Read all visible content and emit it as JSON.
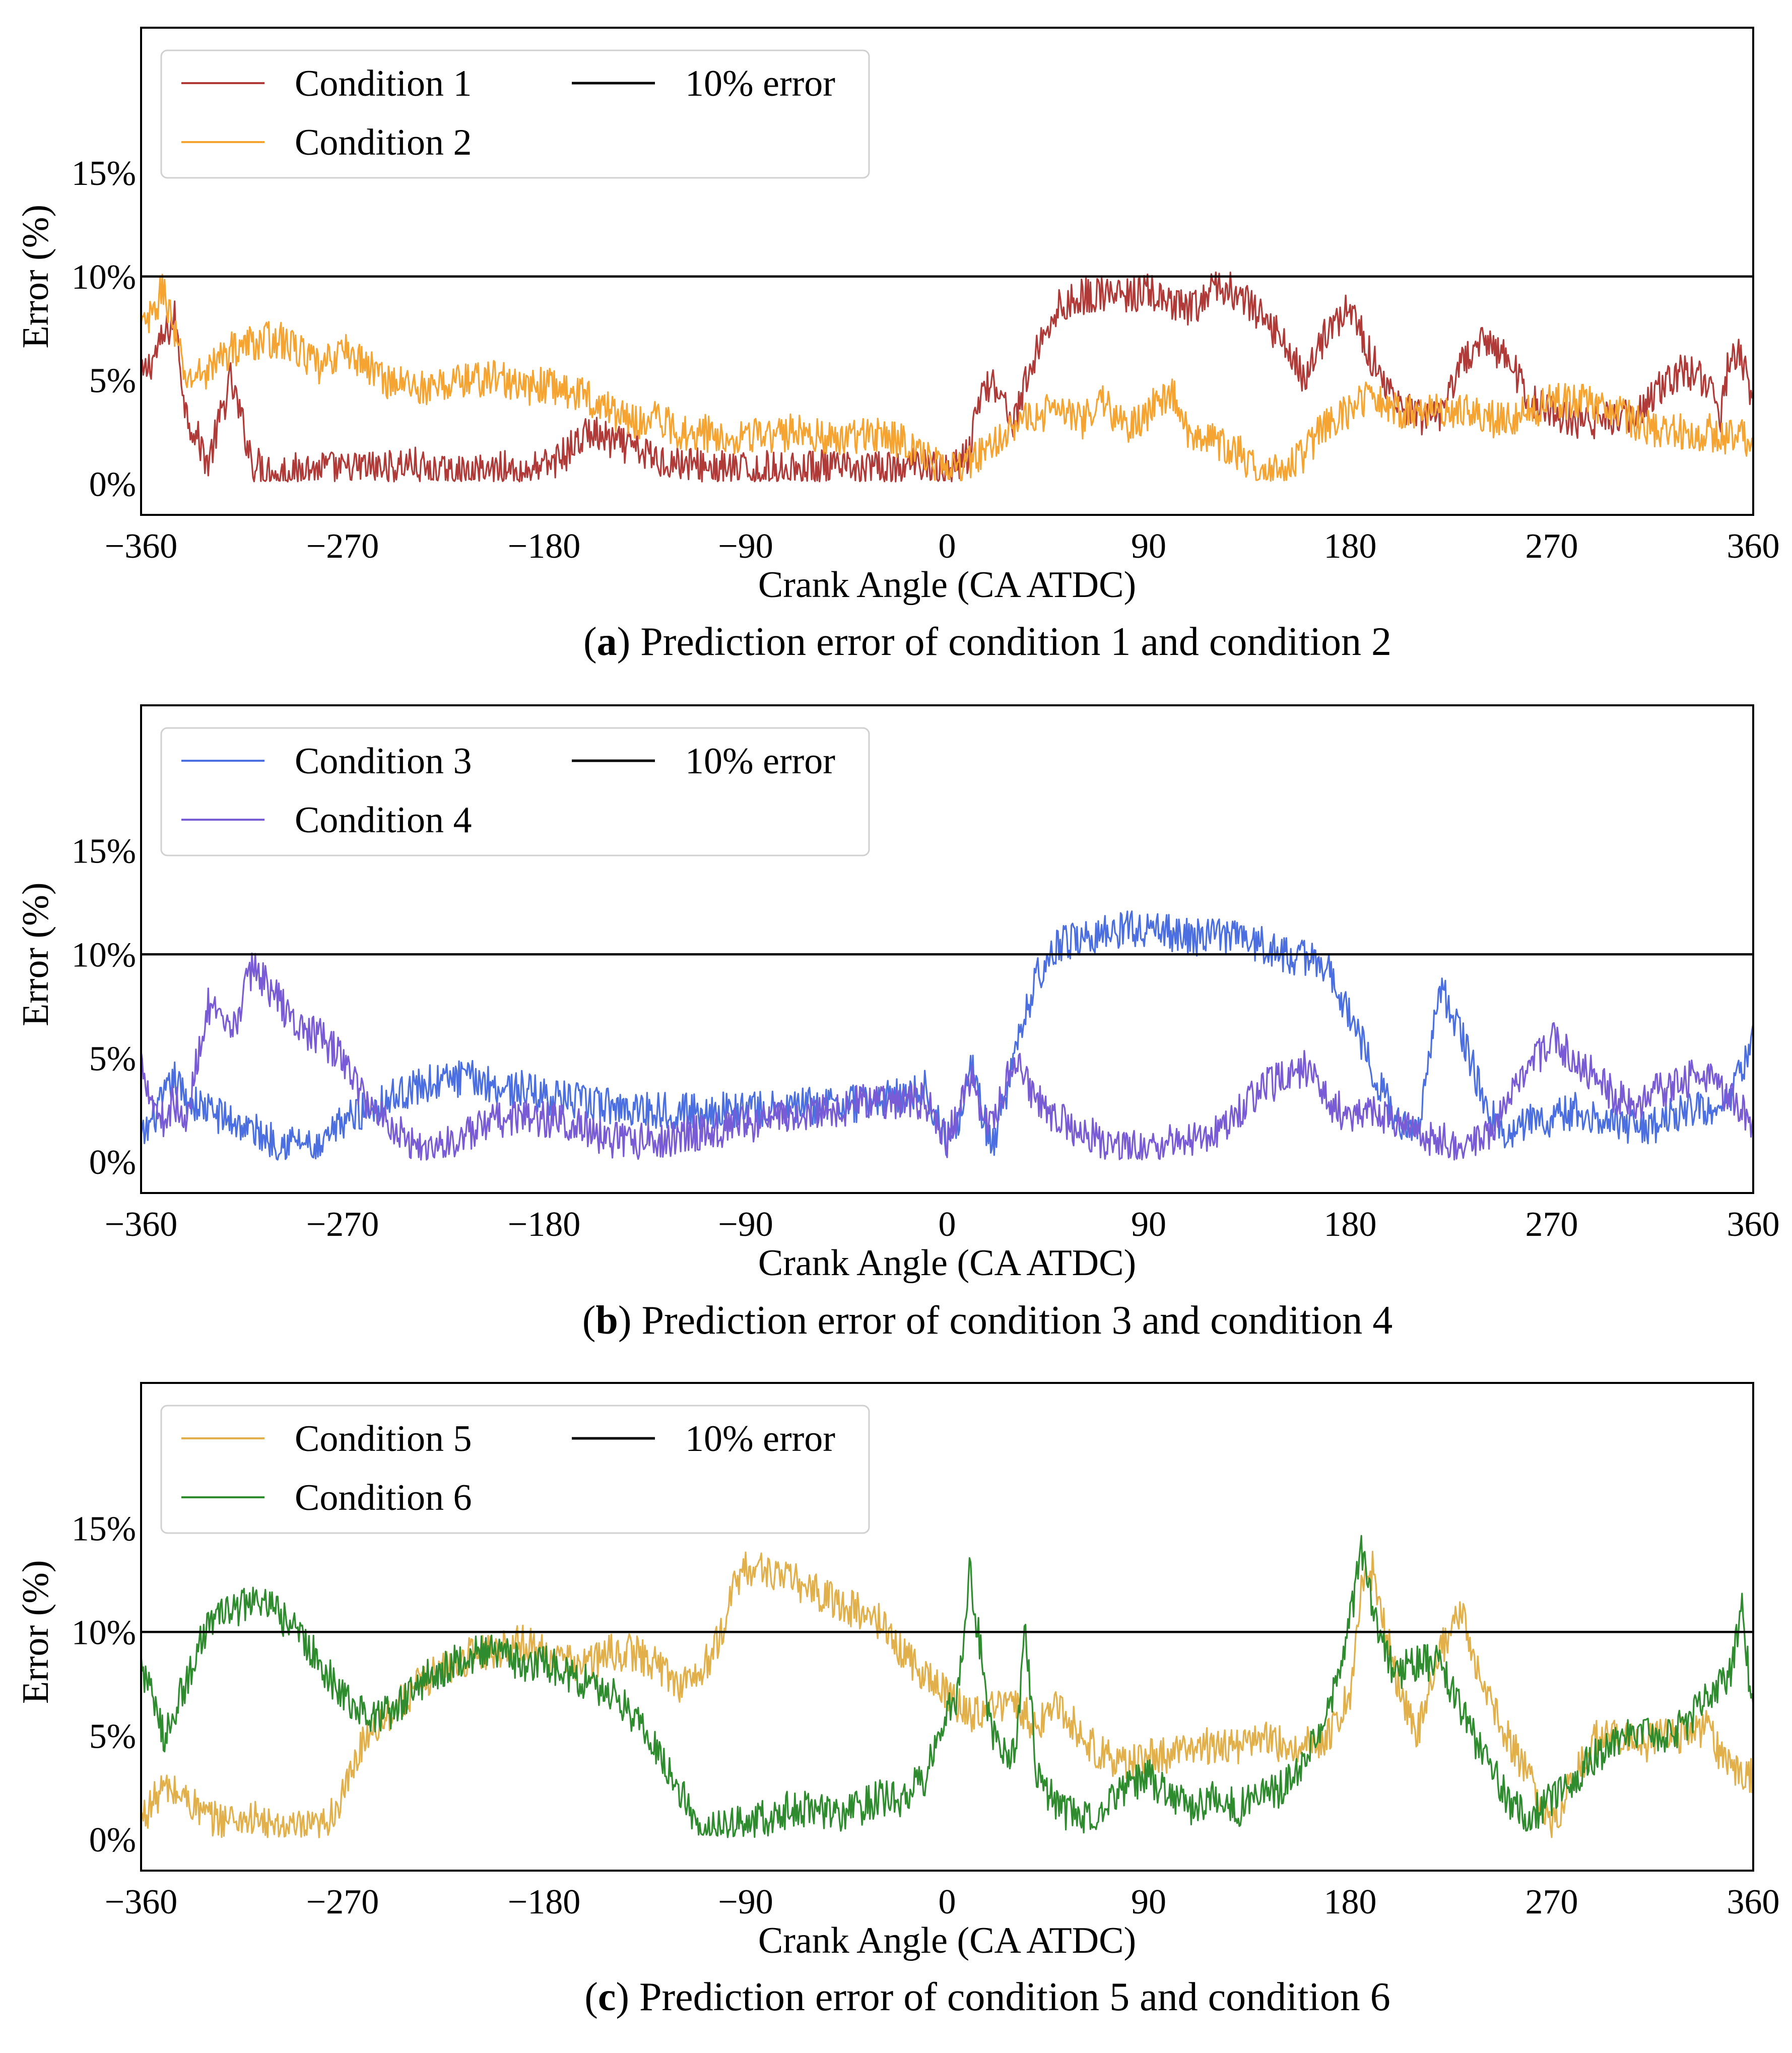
{
  "chart_data": [
    {
      "type": "line",
      "panel": "a",
      "caption_label": "a",
      "caption_text": "Prediction error of condition 1 and condition 2",
      "xlabel": "Crank Angle (CA ATDC)",
      "ylabel": "Error (%)",
      "xlim": [
        -360,
        360
      ],
      "ylim": [
        -1.5,
        22
      ],
      "xticks": [
        -360,
        -270,
        -180,
        -90,
        0,
        90,
        180,
        270,
        360
      ],
      "xtick_labels": [
        "−360",
        "−270",
        "−180",
        "−90",
        "0",
        "90",
        "180",
        "270",
        "360"
      ],
      "yticks": [
        0,
        5,
        10,
        15
      ],
      "ytick_labels": [
        "0%",
        "5%",
        "10%",
        "15%"
      ],
      "grid": false,
      "legend_position": "top-left",
      "reference_line": {
        "name": "10% error",
        "y": 10,
        "color": "#000000"
      },
      "series": [
        {
          "name": "Condition 1",
          "color": "#b03a38",
          "x": [
            -360,
            -350,
            -345,
            -340,
            -330,
            -320,
            -310,
            -300,
            -290,
            -280,
            -270,
            -260,
            -250,
            -240,
            -230,
            -220,
            -210,
            -200,
            -190,
            -180,
            -170,
            -160,
            -150,
            -140,
            -130,
            -120,
            -110,
            -100,
            -90,
            -80,
            -70,
            -60,
            -50,
            -40,
            -30,
            -20,
            -10,
            0,
            10,
            15,
            20,
            30,
            40,
            50,
            60,
            70,
            80,
            90,
            100,
            110,
            120,
            130,
            140,
            150,
            160,
            170,
            180,
            190,
            200,
            210,
            220,
            230,
            240,
            250,
            260,
            270,
            280,
            290,
            300,
            310,
            320,
            330,
            340,
            345,
            350,
            355,
            360
          ],
          "values": [
            5,
            7,
            8,
            3.5,
            1,
            5,
            1,
            0.5,
            0.7,
            0.8,
            0.6,
            0.8,
            0.7,
            1,
            0.5,
            0.4,
            0.5,
            0.8,
            0.6,
            0.8,
            1.5,
            2.5,
            2,
            1.7,
            1.2,
            1,
            0.9,
            0.7,
            0.6,
            0.7,
            0.6,
            0.8,
            0.7,
            0.6,
            0.7,
            0.6,
            1.2,
            0.5,
            1.5,
            4.5,
            5,
            3,
            6.5,
            8.5,
            9,
            9.2,
            9,
            9.3,
            8.5,
            8.4,
            9.5,
            9.2,
            8,
            7,
            5,
            7.5,
            8.5,
            6,
            4,
            3.2,
            3,
            6,
            6.8,
            6.2,
            4,
            3.5,
            3,
            3,
            3.2,
            3.5,
            4.8,
            5.5,
            5,
            3,
            6.5,
            6,
            4
          ]
        },
        {
          "name": "Condition 2",
          "color": "#f5a431",
          "x": [
            -360,
            -355,
            -350,
            -340,
            -330,
            -320,
            -310,
            -300,
            -290,
            -280,
            -270,
            -260,
            -250,
            -240,
            -230,
            -220,
            -210,
            -200,
            -190,
            -180,
            -170,
            -160,
            -150,
            -140,
            -130,
            -120,
            -110,
            -100,
            -90,
            -80,
            -70,
            -60,
            -50,
            -40,
            -30,
            -20,
            -10,
            0,
            10,
            20,
            30,
            40,
            50,
            60,
            70,
            80,
            90,
            100,
            110,
            120,
            130,
            140,
            150,
            160,
            170,
            180,
            190,
            200,
            210,
            220,
            230,
            240,
            250,
            260,
            270,
            280,
            290,
            300,
            310,
            320,
            330,
            340,
            350,
            360
          ],
          "values": [
            7.5,
            8,
            9.5,
            5,
            5.5,
            6.5,
            6.8,
            7,
            6.5,
            5.5,
            6.5,
            5.8,
            5,
            4.8,
            4.5,
            5,
            5,
            5.2,
            4.5,
            4.8,
            4.5,
            4.2,
            3.5,
            3,
            3.2,
            2.5,
            2.5,
            2.2,
            2.5,
            2.2,
            2.5,
            2.5,
            2,
            2.3,
            2.5,
            2,
            1.5,
            0.5,
            1,
            2,
            3,
            3,
            4,
            3,
            4,
            2.5,
            3.5,
            4.5,
            2,
            2,
            1.5,
            0.5,
            0.5,
            1.5,
            3,
            3.5,
            4.5,
            3.5,
            3.5,
            3.5,
            3.5,
            3.2,
            3,
            3.5,
            4,
            4,
            3.8,
            3.5,
            2.8,
            2.6,
            2.5,
            2.5,
            2.2,
            2.2
          ]
        }
      ]
    },
    {
      "type": "line",
      "panel": "b",
      "caption_label": "b",
      "caption_text": "Prediction error of condition 3 and condition 4",
      "xlabel": "Crank Angle (CA ATDC)",
      "ylabel": "Error (%)",
      "xlim": [
        -360,
        360
      ],
      "ylim": [
        -1.5,
        22
      ],
      "xticks": [
        -360,
        -270,
        -180,
        -90,
        0,
        90,
        180,
        270,
        360
      ],
      "xtick_labels": [
        "−360",
        "−270",
        "−180",
        "−90",
        "0",
        "90",
        "180",
        "270",
        "360"
      ],
      "yticks": [
        0,
        5,
        10,
        15
      ],
      "ytick_labels": [
        "0%",
        "5%",
        "10%",
        "15%"
      ],
      "grid": false,
      "legend_position": "top-left",
      "reference_line": {
        "name": "10% error",
        "y": 10,
        "color": "#000000"
      },
      "series": [
        {
          "name": "Condition 3",
          "color": "#4b6fe0",
          "x": [
            -360,
            -355,
            -350,
            -345,
            -340,
            -330,
            -320,
            -310,
            -300,
            -290,
            -280,
            -270,
            -260,
            -250,
            -240,
            -230,
            -220,
            -210,
            -200,
            -190,
            -180,
            -170,
            -160,
            -150,
            -140,
            -130,
            -120,
            -110,
            -100,
            -90,
            -80,
            -70,
            -60,
            -50,
            -40,
            -30,
            -20,
            -10,
            0,
            5,
            10,
            20,
            30,
            40,
            50,
            60,
            70,
            80,
            90,
            100,
            110,
            120,
            130,
            140,
            150,
            160,
            170,
            180,
            190,
            200,
            210,
            220,
            230,
            240,
            250,
            260,
            270,
            280,
            290,
            300,
            310,
            320,
            330,
            340,
            350,
            360
          ],
          "values": [
            1,
            2,
            3,
            4,
            3,
            2.5,
            2,
            1.5,
            1,
            1,
            0.5,
            2,
            2.5,
            3,
            3.5,
            3.8,
            4,
            4,
            3.6,
            3.5,
            3.2,
            3,
            2.8,
            2.7,
            2.6,
            2.5,
            2.5,
            2.4,
            2.5,
            2.5,
            2.5,
            2.6,
            2.7,
            2.8,
            2.8,
            3,
            3.2,
            3.5,
            1,
            2,
            5,
            0.5,
            5,
            9,
            10.5,
            10.8,
            11,
            11.3,
            11.2,
            11,
            10.8,
            11,
            10.8,
            10.5,
            10,
            9.8,
            9.5,
            7,
            4.5,
            2,
            1.5,
            8.5,
            6,
            3,
            1,
            2,
            2,
            2.5,
            2,
            2,
            1.5,
            2,
            2.5,
            2.5,
            3,
            6
          ]
        },
        {
          "name": "Condition 4",
          "color": "#7a5bd6",
          "x": [
            -360,
            -355,
            -350,
            -345,
            -340,
            -335,
            -330,
            -320,
            -310,
            -300,
            -290,
            -280,
            -270,
            -260,
            -250,
            -240,
            -230,
            -220,
            -210,
            -200,
            -190,
            -180,
            -170,
            -160,
            -150,
            -140,
            -130,
            -120,
            -110,
            -100,
            -90,
            -80,
            -70,
            -60,
            -50,
            -40,
            -30,
            -20,
            -10,
            0,
            10,
            20,
            30,
            40,
            50,
            60,
            70,
            80,
            90,
            100,
            110,
            120,
            130,
            140,
            150,
            160,
            170,
            180,
            190,
            200,
            210,
            220,
            230,
            240,
            250,
            260,
            270,
            280,
            290,
            300,
            310,
            320,
            330,
            340,
            350,
            360
          ],
          "values": [
            5,
            3,
            2,
            3,
            1.5,
            5,
            7.5,
            6,
            9.5,
            8,
            6.5,
            6,
            5,
            3,
            2,
            1,
            0.5,
            1,
            1.5,
            2,
            2.2,
            2,
            2,
            1.5,
            1,
            1,
            1,
            1.2,
            1.5,
            1.6,
            1.8,
            2,
            2.2,
            2.5,
            2.5,
            2.8,
            3,
            2.8,
            3,
            1,
            4,
            1.5,
            5,
            3,
            2,
            1.5,
            1,
            0.5,
            0.8,
            1,
            1.2,
            1.5,
            2.5,
            3.5,
            4,
            4.5,
            3,
            2,
            2.5,
            2,
            1.5,
            1,
            0.8,
            1,
            3,
            4.5,
            6,
            5,
            4,
            3,
            3,
            3.5,
            4,
            4,
            3,
            2
          ]
        }
      ]
    },
    {
      "type": "line",
      "panel": "c",
      "caption_label": "c",
      "caption_text": "Prediction error of condition 5 and condition 6",
      "xlabel": "Crank Angle (CA ATDC)",
      "ylabel": "Error (%)",
      "xlim": [
        -360,
        360
      ],
      "ylim": [
        -1.5,
        22
      ],
      "xticks": [
        -360,
        -270,
        -180,
        -90,
        0,
        90,
        180,
        270,
        360
      ],
      "xtick_labels": [
        "−360",
        "−270",
        "−180",
        "−90",
        "0",
        "90",
        "180",
        "270",
        "360"
      ],
      "yticks": [
        0,
        5,
        10,
        15
      ],
      "ytick_labels": [
        "0%",
        "5%",
        "10%",
        "15%"
      ],
      "grid": false,
      "legend_position": "top-left",
      "reference_line": {
        "name": "10% error",
        "y": 10,
        "color": "#000000"
      },
      "series": [
        {
          "name": "Condition 5",
          "color": "#e2b04a",
          "x": [
            -360,
            -350,
            -340,
            -330,
            -320,
            -310,
            -300,
            -290,
            -280,
            -270,
            -260,
            -250,
            -240,
            -230,
            -220,
            -210,
            -200,
            -190,
            -180,
            -170,
            -160,
            -150,
            -140,
            -130,
            -120,
            -110,
            -100,
            -95,
            -90,
            -80,
            -70,
            -60,
            -50,
            -40,
            -30,
            -20,
            -10,
            0,
            10,
            20,
            30,
            40,
            50,
            60,
            70,
            80,
            90,
            100,
            110,
            120,
            130,
            140,
            150,
            160,
            170,
            180,
            185,
            190,
            200,
            210,
            220,
            230,
            240,
            250,
            260,
            270,
            280,
            290,
            300,
            310,
            320,
            330,
            340,
            345,
            350,
            360
          ],
          "values": [
            1,
            2.5,
            2,
            1,
            1,
            1,
            0.5,
            0.5,
            0.5,
            2,
            5,
            6,
            7,
            8,
            8.5,
            9,
            9.2,
            9.5,
            9,
            8.5,
            8.5,
            9,
            9,
            8.5,
            7.5,
            8,
            10,
            12.5,
            13,
            13,
            12.5,
            12,
            11.5,
            11,
            10.5,
            9,
            8,
            7,
            6,
            6.5,
            6.5,
            5.5,
            6.5,
            5,
            4,
            3.5,
            4,
            4,
            4.5,
            4.5,
            4.5,
            5,
            4.5,
            4.5,
            5,
            7,
            12,
            13,
            8,
            5,
            9,
            11,
            7,
            5,
            3,
            0.5,
            3,
            5,
            5,
            4.5,
            5,
            5,
            5.5,
            4,
            3.5,
            3
          ]
        },
        {
          "name": "Condition 6",
          "color": "#2e8b2e",
          "x": [
            -360,
            -350,
            -340,
            -330,
            -320,
            -310,
            -300,
            -290,
            -280,
            -270,
            -260,
            -250,
            -240,
            -230,
            -220,
            -210,
            -200,
            -190,
            -180,
            -170,
            -160,
            -150,
            -140,
            -130,
            -120,
            -110,
            -100,
            -90,
            -80,
            -70,
            -60,
            -50,
            -40,
            -30,
            -20,
            -10,
            0,
            5,
            10,
            20,
            30,
            35,
            40,
            50,
            60,
            70,
            80,
            90,
            100,
            110,
            120,
            130,
            140,
            150,
            160,
            170,
            180,
            185,
            190,
            200,
            210,
            220,
            230,
            240,
            250,
            260,
            270,
            280,
            290,
            300,
            310,
            320,
            330,
            340,
            350,
            355,
            360
          ],
          "values": [
            8.5,
            5,
            7.5,
            10.5,
            11,
            11.5,
            11,
            10,
            8.5,
            7,
            6,
            6,
            7,
            8,
            8.5,
            9,
            9,
            8.5,
            8.5,
            8,
            7.5,
            7,
            6,
            4.5,
            2.5,
            0.5,
            0.5,
            1,
            1,
            1.5,
            1.5,
            1,
            1.5,
            2,
            2,
            3,
            6,
            7,
            13,
            5,
            4,
            10,
            3,
            1.5,
            1,
            1.5,
            2.5,
            3,
            2,
            1.5,
            2,
            1.5,
            2,
            2.5,
            4,
            6,
            10.5,
            14,
            11,
            8,
            8.5,
            8.5,
            6,
            4,
            2,
            1,
            2,
            3,
            4,
            5,
            5,
            5,
            5.5,
            7,
            8,
            11,
            6
          ]
        }
      ]
    }
  ]
}
